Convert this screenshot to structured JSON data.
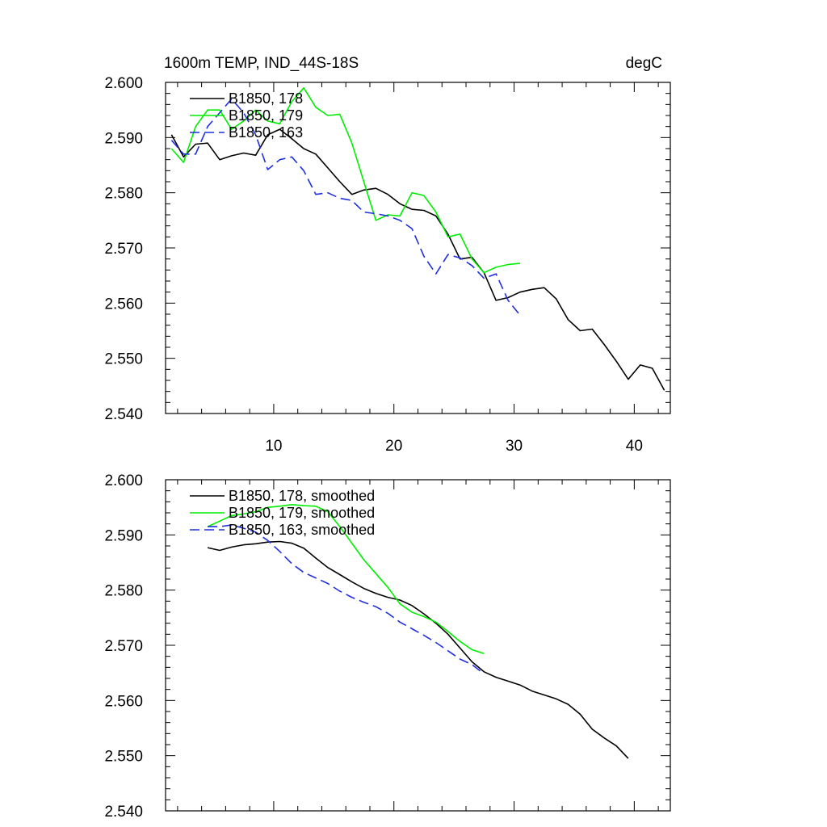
{
  "chart_data": [
    {
      "type": "line",
      "title": "1600m TEMP, IND_44S-18S",
      "units": "degC",
      "xlim": [
        1,
        43
      ],
      "ylim": [
        2.54,
        2.6
      ],
      "xticks": [
        10,
        20,
        30,
        40
      ],
      "xtick_labels": [
        "10",
        "20",
        "30",
        "40"
      ],
      "yticks": [
        2.54,
        2.55,
        2.56,
        2.57,
        2.58,
        2.59,
        2.6
      ],
      "ytick_labels": [
        "2.540",
        "2.550",
        "2.560",
        "2.570",
        "2.580",
        "2.590",
        "2.600"
      ],
      "grid": false,
      "legend_position": "top-left",
      "series": [
        {
          "name": "B1850, 178",
          "color": "#000000",
          "dash": "solid",
          "x": [
            1.5,
            2.5,
            3.5,
            4.5,
            5.5,
            6.5,
            7.5,
            8.5,
            9.5,
            10.5,
            11.5,
            12.5,
            13.5,
            14.5,
            15.5,
            16.5,
            17.5,
            18.5,
            19.5,
            20.5,
            21.5,
            22.5,
            23.5,
            24.5,
            25.5,
            26.5,
            27.5,
            28.5,
            29.5,
            30.5,
            31.5,
            32.5,
            33.5,
            34.5,
            35.5,
            36.5,
            37.5,
            38.5,
            39.5,
            40.5,
            41.5,
            42.5
          ],
          "y": [
            2.5905,
            2.5865,
            2.5888,
            2.589,
            2.586,
            2.5867,
            2.5872,
            2.5868,
            2.5905,
            2.5915,
            2.5898,
            2.588,
            2.587,
            2.5845,
            2.582,
            2.5797,
            2.5805,
            2.5808,
            2.5797,
            2.578,
            2.577,
            2.5768,
            2.5758,
            2.5725,
            2.568,
            2.5683,
            2.5655,
            2.5605,
            2.561,
            2.562,
            2.5625,
            2.5628,
            2.5608,
            2.557,
            2.555,
            2.5553,
            2.5525,
            2.5495,
            2.5462,
            2.5488,
            2.5482,
            2.5442
          ]
        },
        {
          "name": "B1850, 179",
          "color": "#00ee00",
          "dash": "solid",
          "x": [
            1.5,
            2.5,
            3.5,
            4.5,
            5.5,
            6.5,
            7.5,
            8.5,
            9.5,
            10.5,
            11.5,
            12.5,
            13.5,
            14.5,
            15.5,
            16.5,
            17.5,
            18.5,
            19.5,
            20.5,
            21.5,
            22.5,
            23.5,
            24.5,
            25.5,
            26.5,
            27.5,
            28.5,
            29.5,
            30.5
          ],
          "y": [
            2.588,
            2.5855,
            2.592,
            2.595,
            2.595,
            2.5915,
            2.593,
            2.595,
            2.593,
            2.5925,
            2.5965,
            2.599,
            2.5955,
            2.594,
            2.5942,
            2.589,
            2.582,
            2.575,
            2.576,
            2.5758,
            2.58,
            2.5795,
            2.5765,
            2.572,
            2.5725,
            2.568,
            2.5655,
            2.5665,
            2.567,
            2.5672
          ]
        },
        {
          "name": "B1850, 163",
          "color": "#1f2fe0",
          "dash": "dashed",
          "x": [
            1.5,
            2.5,
            3.5,
            4.5,
            5.5,
            6.5,
            7.5,
            8.5,
            9.5,
            10.5,
            11.5,
            12.5,
            13.5,
            14.5,
            15.5,
            16.5,
            17.5,
            18.5,
            19.5,
            20.5,
            21.5,
            22.5,
            23.5,
            24.5,
            25.5,
            26.5,
            27.5,
            28.5,
            29.5,
            30.5
          ],
          "y": [
            2.5895,
            2.587,
            2.587,
            2.592,
            2.5945,
            2.597,
            2.5945,
            2.5905,
            2.5842,
            2.586,
            2.5865,
            2.584,
            2.5797,
            2.58,
            2.579,
            2.5786,
            2.5765,
            2.5762,
            2.5758,
            2.575,
            2.5735,
            2.5685,
            2.5653,
            2.5688,
            2.5682,
            2.5668,
            2.5645,
            2.5653,
            2.5605,
            2.5578
          ]
        }
      ]
    },
    {
      "type": "line",
      "title": "",
      "xlim": [
        1,
        43
      ],
      "ylim": [
        2.54,
        2.6
      ],
      "xticks": [
        10,
        20,
        30,
        40
      ],
      "yticks": [
        2.54,
        2.55,
        2.56,
        2.57,
        2.58,
        2.59,
        2.6
      ],
      "ytick_labels": [
        "2.540",
        "2.550",
        "2.560",
        "2.570",
        "2.580",
        "2.590",
        "2.600"
      ],
      "grid": false,
      "legend_position": "top-left",
      "series": [
        {
          "name": "B1850, 178, smoothed",
          "color": "#000000",
          "dash": "solid",
          "x": [
            4.5,
            5.5,
            6.5,
            7.5,
            8.5,
            9.5,
            10.5,
            11.5,
            12.5,
            13.5,
            14.5,
            15.5,
            16.5,
            17.5,
            18.5,
            19.5,
            20.5,
            21.5,
            22.5,
            23.5,
            24.5,
            25.5,
            26.5,
            27.5,
            28.5,
            29.5,
            30.5,
            31.5,
            32.5,
            33.5,
            34.5,
            35.5,
            36.5,
            37.5,
            38.5,
            39.5
          ],
          "y": [
            2.5877,
            2.5872,
            2.5878,
            2.5882,
            2.5884,
            2.5887,
            2.5888,
            2.5885,
            2.5876,
            2.5858,
            2.5841,
            2.5828,
            2.5815,
            2.5803,
            2.5794,
            2.5787,
            2.5782,
            2.5772,
            2.5757,
            2.574,
            2.572,
            2.5695,
            2.567,
            2.5652,
            2.5642,
            2.5635,
            2.5628,
            2.5617,
            2.561,
            2.5603,
            2.5593,
            2.5575,
            2.5548,
            2.5532,
            2.5518,
            2.5495
          ]
        },
        {
          "name": "B1850, 179, smoothed",
          "color": "#00ee00",
          "dash": "solid",
          "x": [
            4.5,
            5.5,
            6.5,
            7.5,
            8.5,
            9.5,
            10.5,
            11.5,
            12.5,
            13.5,
            14.5,
            15.5,
            16.5,
            17.5,
            18.5,
            19.5,
            20.5,
            21.5,
            22.5,
            23.5,
            24.5,
            25.5,
            26.5,
            27.5
          ],
          "y": [
            2.5915,
            2.5925,
            2.5935,
            2.5938,
            2.5942,
            2.595,
            2.5952,
            2.5955,
            2.5953,
            2.5952,
            2.5942,
            2.5915,
            2.5885,
            2.5855,
            2.583,
            2.5805,
            2.5775,
            2.576,
            2.5752,
            2.5742,
            2.5725,
            2.5707,
            2.5692,
            2.5685
          ]
        },
        {
          "name": "B1850, 163, smoothed",
          "color": "#1f2fe0",
          "dash": "dashed",
          "x": [
            4.5,
            5.5,
            6.5,
            7.5,
            8.5,
            9.5,
            10.5,
            11.5,
            12.5,
            13.5,
            14.5,
            15.5,
            16.5,
            17.5,
            18.5,
            19.5,
            20.5,
            21.5,
            22.5,
            23.5,
            24.5,
            25.5,
            26.5,
            27.5
          ],
          "y": [
            2.5915,
            2.5915,
            2.5918,
            2.5912,
            2.5905,
            2.589,
            2.587,
            2.5848,
            2.5832,
            2.5822,
            2.5812,
            2.5798,
            2.5787,
            2.5778,
            2.577,
            2.5758,
            2.5742,
            2.573,
            2.5718,
            2.5705,
            2.569,
            2.5675,
            2.5665,
            2.5648
          ]
        }
      ]
    }
  ]
}
